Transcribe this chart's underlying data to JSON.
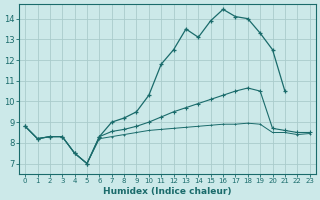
{
  "xlabel": "Humidex (Indice chaleur)",
  "background_color": "#cce9e9",
  "grid_color": "#aacccc",
  "line_color": "#1a6b6b",
  "xlim": [
    -0.5,
    23.5
  ],
  "ylim": [
    6.5,
    14.7
  ],
  "yticks": [
    7,
    8,
    9,
    10,
    11,
    12,
    13,
    14
  ],
  "xticks": [
    0,
    1,
    2,
    3,
    4,
    5,
    6,
    7,
    8,
    9,
    10,
    11,
    12,
    13,
    14,
    15,
    16,
    17,
    18,
    19,
    20,
    21,
    22,
    23
  ],
  "xtick_labels": [
    "0",
    "1",
    "2",
    "3",
    "4",
    "5",
    "6",
    "7",
    "8",
    "9",
    "10",
    "11",
    "12",
    "13",
    "14",
    "15",
    "16",
    "17",
    "18",
    "19",
    "20",
    "21",
    "22",
    "23"
  ],
  "line1_x": [
    0,
    1,
    2,
    3,
    4,
    5,
    6,
    7,
    8,
    9,
    10,
    11,
    12,
    13,
    14,
    15,
    16,
    17,
    18,
    19,
    20,
    21
  ],
  "line1_y": [
    8.8,
    8.2,
    8.3,
    8.3,
    7.5,
    7.0,
    8.3,
    9.0,
    9.2,
    9.5,
    10.3,
    11.8,
    12.5,
    13.5,
    13.1,
    13.9,
    14.45,
    14.1,
    14.0,
    13.3,
    12.5,
    10.5
  ],
  "line2_x": [
    0,
    1,
    2,
    3,
    4,
    5,
    6,
    7,
    8,
    9,
    10,
    11,
    12,
    13,
    14,
    15,
    16,
    17,
    18,
    19,
    20,
    21,
    22,
    23
  ],
  "line2_y": [
    8.8,
    8.2,
    8.3,
    8.3,
    7.5,
    7.0,
    8.3,
    8.55,
    8.65,
    8.8,
    9.0,
    9.25,
    9.5,
    9.7,
    9.9,
    10.1,
    10.3,
    10.5,
    10.65,
    10.5,
    8.7,
    8.6,
    8.5,
    8.5
  ],
  "line3_x": [
    0,
    1,
    2,
    3,
    4,
    5,
    6,
    7,
    8,
    9,
    10,
    11,
    12,
    13,
    14,
    15,
    16,
    17,
    18,
    19,
    20,
    21,
    22,
    23
  ],
  "line3_y": [
    8.8,
    8.2,
    8.3,
    8.3,
    7.5,
    7.0,
    8.2,
    8.3,
    8.4,
    8.5,
    8.6,
    8.65,
    8.7,
    8.75,
    8.8,
    8.85,
    8.9,
    8.9,
    8.95,
    8.9,
    8.5,
    8.5,
    8.4,
    8.45
  ]
}
